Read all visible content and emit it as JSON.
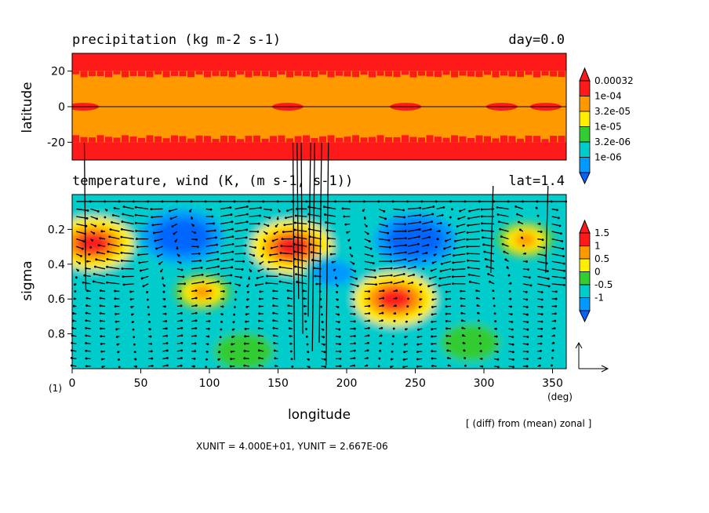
{
  "chart_data": [
    {
      "type": "heatmap",
      "title": "precipitation (kg m-2 s-1)",
      "annotation": "day=0.0",
      "ylabel": "latitude",
      "xlim": [
        0,
        360
      ],
      "ylim": [
        -30,
        30
      ],
      "yticks": [
        20,
        0,
        -20
      ],
      "colorbar": {
        "levels": [
          "1e-06",
          "3.2e-06",
          "1e-05",
          "3.2e-05",
          "1e-04",
          "0.00032"
        ],
        "colors": [
          "#0099ff",
          "#00cccc",
          "#33cc33",
          "#ffee00",
          "#ff9900",
          "#ff1a1a"
        ]
      },
      "bands": [
        {
          "lat_range": [
            20,
            30
          ],
          "value": "0.00032"
        },
        {
          "lat_range": [
            -20,
            20
          ],
          "value": "1e-04"
        },
        {
          "lat_range": [
            -30,
            -20
          ],
          "value": "0.00032"
        }
      ],
      "patches": [
        {
          "lon": 8,
          "lat": 0,
          "value": "0.00032"
        },
        {
          "lon": 157,
          "lat": 0,
          "value": "0.00032"
        },
        {
          "lon": 243,
          "lat": 0,
          "value": "0.00032"
        },
        {
          "lon": 313,
          "lat": 0,
          "value": "0.00032"
        },
        {
          "lon": 345,
          "lat": 0,
          "value": "0.00032"
        }
      ]
    },
    {
      "type": "heatmap",
      "title": "temperature, wind (K, (m s-1, s-1))",
      "annotation": "lat=1.4",
      "xlabel": "longitude",
      "ylabel": "sigma",
      "xlim": [
        0,
        360
      ],
      "ylim": [
        1.0,
        0.0
      ],
      "xticks": [
        0,
        50,
        100,
        150,
        200,
        250,
        300,
        350
      ],
      "xunit": "(deg)",
      "yticks": [
        0.2,
        0.4,
        0.6,
        0.8
      ],
      "colorbar": {
        "levels": [
          "-1",
          "-0.5",
          "0",
          "0.5",
          "1",
          "1.5"
        ],
        "colors": [
          "#0099ff",
          "#00cccc",
          "#33cc33",
          "#ffee00",
          "#ff9900",
          "#ff1a1a"
        ]
      },
      "base_value": -0.3,
      "anomalies": [
        {
          "lon": 80,
          "sigma": 0.24,
          "value": -1.5
        },
        {
          "lon": 250,
          "sigma": 0.26,
          "value": -1.5
        },
        {
          "lon": 15,
          "sigma": 0.28,
          "value": 1.6
        },
        {
          "lon": 160,
          "sigma": 0.3,
          "value": 1.7
        },
        {
          "lon": 330,
          "sigma": 0.26,
          "value": 1.2
        },
        {
          "lon": 235,
          "sigma": 0.6,
          "value": 1.8
        },
        {
          "lon": 95,
          "sigma": 0.56,
          "value": 1.0
        },
        {
          "lon": 190,
          "sigma": 0.45,
          "value": -0.8
        },
        {
          "lon": 125,
          "sigma": 0.9,
          "value": 0.2
        },
        {
          "lon": 290,
          "sigma": 0.85,
          "value": 0.3
        }
      ]
    }
  ],
  "panel_label": "(1)",
  "note": "[ (diff) from (mean) zonal ]",
  "units_line": "XUNIT = 4.000E+01, YUNIT = 2.667E-06"
}
